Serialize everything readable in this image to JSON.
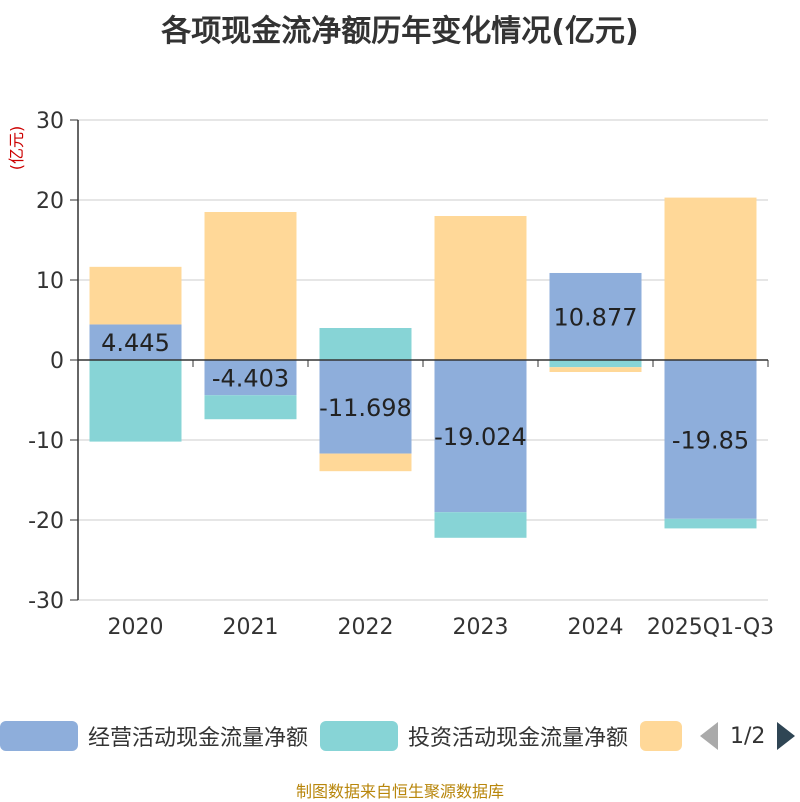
{
  "title": "各项现金流净额历年变化情况(亿元)",
  "source_text": "制图数据来自恒生聚源数据库",
  "pager": {
    "text": "1/2"
  },
  "colors": {
    "operating": "#8eaedb",
    "investing": "#87d4d6",
    "financing": "#ffd898",
    "axis": "#333333",
    "grid": "#cccccc",
    "unit": "#cc0000"
  },
  "legend": [
    {
      "label": "经营活动现金流量净额",
      "color": "#8eaedb"
    },
    {
      "label": "投资活动现金流量净额",
      "color": "#87d4d6"
    },
    {
      "label": "",
      "color": "#ffd898"
    }
  ],
  "chart_data": {
    "type": "bar",
    "stacked": true,
    "title": "各项现金流净额历年变化情况(亿元)",
    "ylabel": "(亿元)",
    "xlabel": "",
    "ylim": [
      -30,
      30
    ],
    "yticks": [
      30,
      20,
      10,
      0,
      -10,
      -20,
      -30
    ],
    "categories": [
      "2020",
      "2021",
      "2022",
      "2023",
      "2024",
      "2025Q1-Q3"
    ],
    "series": [
      {
        "name": "经营活动现金流量净额",
        "values": [
          4.445,
          -4.403,
          -11.698,
          -19.024,
          10.877,
          -19.85
        ],
        "show_labels": true
      },
      {
        "name": "投资活动现金流量净额",
        "values": [
          -10.2,
          -3.0,
          4.0,
          -3.2,
          -0.9,
          -1.2
        ],
        "show_labels": false
      },
      {
        "name": "",
        "values": [
          7.2,
          18.5,
          -2.2,
          18.0,
          -0.6,
          20.3
        ],
        "show_labels": false
      }
    ],
    "grid": true,
    "legend_position": "bottom"
  }
}
